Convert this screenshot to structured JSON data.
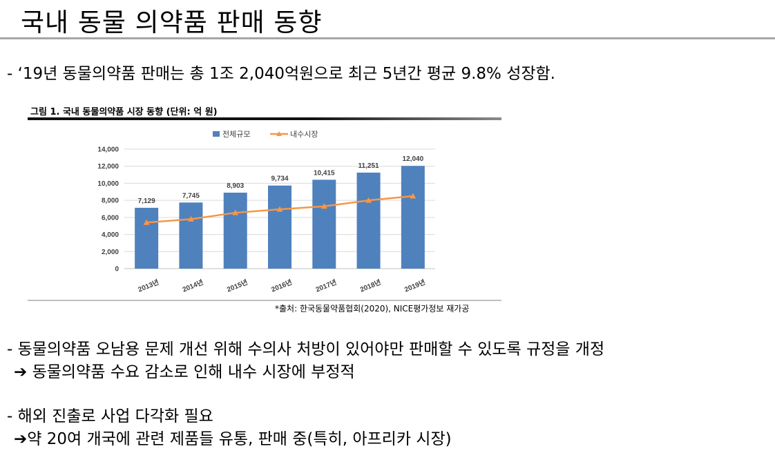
{
  "page": {
    "title": "국내 동물 의약품 판매 동향",
    "bullets": {
      "b1": "- ‘19년 동물의약품 판매는 총 1조 2,040억원으로 최근 5년간 평균 9.8% 성장함.",
      "b2": "- 동물의약품 오남용 문제 개선 위해 수의사 처방이 있어야만 판매할 수 있도록 규정을 개정",
      "b2_sub": "➔ 동물의약품 수요 감소로 인해 내수 시장에 부정적",
      "b3": "- 해외 진출로 사업 다각화 필요",
      "b3_sub": "➔약 20여 개국에 관련 제품들 유통, 판매 중(특히, 아프리카 시장)"
    },
    "figure": {
      "caption": "그림 1. 국내 동물의약품 시장 동향 (단위: 억 원)",
      "source": "*출처: 한국동물약품협회(2020), NICE평가정보 재가공"
    }
  },
  "colors": {
    "bar": "#4f81bd",
    "line": "#f79646",
    "grid": "#d9d9d9"
  },
  "chart_data": {
    "type": "bar",
    "categories": [
      "2013년",
      "2014년",
      "2015년",
      "2016년",
      "2017년",
      "2018년",
      "2019년"
    ],
    "series": [
      {
        "name": "전체규모",
        "type": "bar",
        "values": [
          7129,
          7745,
          8903,
          9734,
          10415,
          11251,
          12040
        ],
        "data_labels": [
          "7,129",
          "7,745",
          "8,903",
          "9,734",
          "10,415",
          "11,251",
          "12,040"
        ]
      },
      {
        "name": "내수시장",
        "type": "line",
        "values": [
          5400,
          5800,
          6550,
          6950,
          7300,
          8000,
          8500
        ]
      }
    ],
    "ylim": [
      0,
      14000
    ],
    "yticks": [
      0,
      2000,
      4000,
      6000,
      8000,
      10000,
      12000,
      14000
    ],
    "ytick_labels": [
      "0",
      "2,000",
      "4,000",
      "6,000",
      "8,000",
      "10,000",
      "12,000",
      "14,000"
    ],
    "grid": true,
    "legend": "top-center"
  }
}
